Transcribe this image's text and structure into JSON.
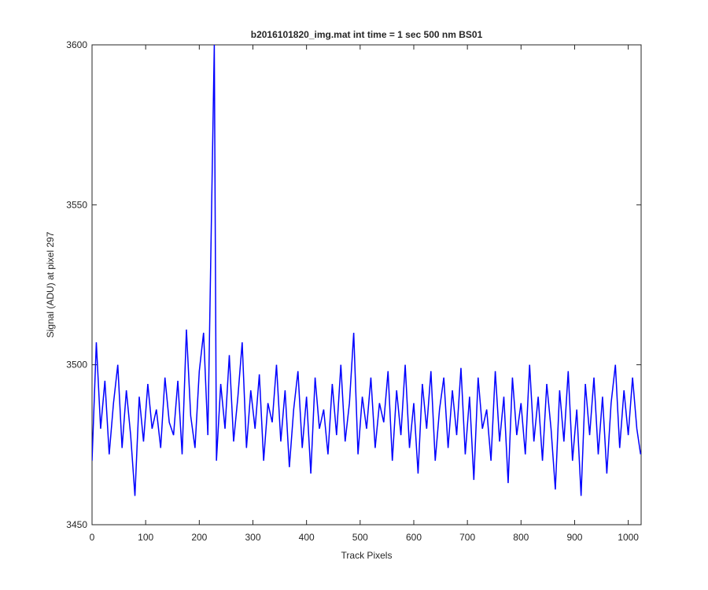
{
  "chart_data": {
    "type": "line",
    "title": "b2016101820_img.mat int time = 1 sec  500 nm BS01",
    "x_label": "Track Pixels",
    "y_label": "Signal (ADU) at pixel 297",
    "x": [
      0,
      8,
      16,
      24,
      32,
      40,
      48,
      56,
      64,
      72,
      80,
      88,
      96,
      104,
      112,
      120,
      128,
      136,
      144,
      152,
      160,
      168,
      176,
      184,
      192,
      200,
      208,
      216,
      228,
      232,
      240,
      248,
      256,
      264,
      272,
      280,
      288,
      296,
      304,
      312,
      320,
      328,
      336,
      344,
      352,
      360,
      368,
      376,
      384,
      392,
      400,
      408,
      416,
      424,
      432,
      440,
      448,
      456,
      464,
      472,
      480,
      488,
      496,
      504,
      512,
      520,
      528,
      536,
      544,
      552,
      560,
      568,
      576,
      584,
      592,
      600,
      608,
      616,
      624,
      632,
      640,
      648,
      656,
      664,
      672,
      680,
      688,
      696,
      704,
      712,
      720,
      728,
      736,
      744,
      752,
      760,
      768,
      776,
      784,
      792,
      800,
      808,
      816,
      824,
      832,
      840,
      848,
      856,
      864,
      872,
      880,
      888,
      896,
      904,
      912,
      920,
      928,
      936,
      944,
      952,
      960,
      968,
      976,
      984,
      992,
      1000,
      1008,
      1016,
      1023
    ],
    "series": [
      {
        "name": "signal",
        "color": "#0000ff",
        "values": [
          3470,
          3507,
          3480,
          3495,
          3472,
          3488,
          3500,
          3474,
          3492,
          3478,
          3459,
          3490,
          3476,
          3494,
          3480,
          3486,
          3474,
          3496,
          3482,
          3478,
          3495,
          3472,
          3511,
          3484,
          3474,
          3498,
          3510,
          3478,
          3600,
          3470,
          3494,
          3480,
          3503,
          3476,
          3490,
          3507,
          3474,
          3492,
          3480,
          3497,
          3470,
          3488,
          3482,
          3500,
          3476,
          3492,
          3468,
          3486,
          3498,
          3474,
          3490,
          3466,
          3496,
          3480,
          3486,
          3472,
          3494,
          3478,
          3500,
          3476,
          3488,
          3510,
          3472,
          3490,
          3480,
          3496,
          3474,
          3488,
          3482,
          3498,
          3470,
          3492,
          3478,
          3500,
          3474,
          3488,
          3466,
          3494,
          3480,
          3498,
          3470,
          3486,
          3496,
          3474,
          3492,
          3478,
          3499,
          3472,
          3490,
          3464,
          3496,
          3480,
          3486,
          3470,
          3498,
          3476,
          3490,
          3463,
          3496,
          3478,
          3488,
          3472,
          3500,
          3476,
          3490,
          3470,
          3494,
          3480,
          3461,
          3492,
          3476,
          3498,
          3470,
          3486,
          3459,
          3494,
          3478,
          3496,
          3472,
          3490,
          3466,
          3488,
          3500,
          3474,
          3492,
          3478,
          3496,
          3480,
          3472
        ]
      }
    ],
    "xlim": [
      0,
      1024
    ],
    "xticks": [
      0,
      100,
      200,
      300,
      400,
      500,
      600,
      700,
      800,
      900,
      1000
    ],
    "ylim": [
      3450,
      3600
    ],
    "yticks": [
      3450,
      3500,
      3550,
      3600
    ]
  }
}
